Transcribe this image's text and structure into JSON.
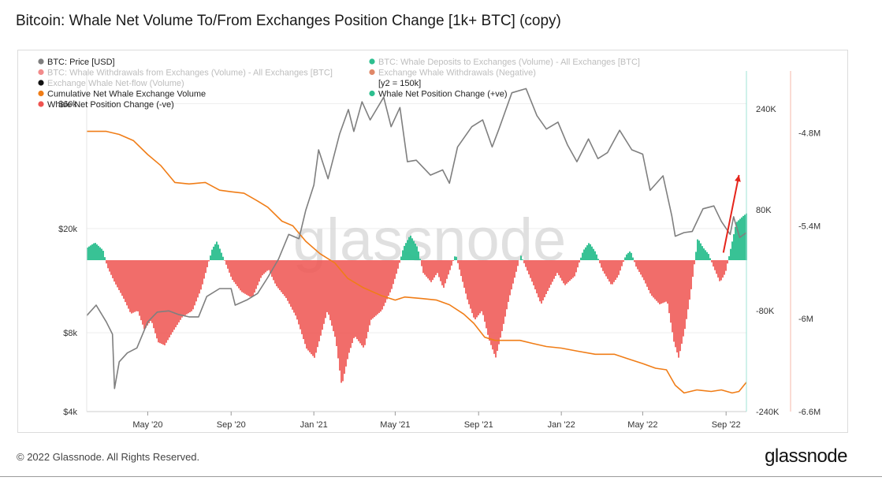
{
  "title": "Bitcoin: Whale Net Volume To/From Exchanges Position Change [1k+ BTC] (copy)",
  "watermark": "glassnode",
  "footer": {
    "copyright": "© 2022 Glassnode. All Rights Reserved.",
    "logo": "glassnode"
  },
  "colors": {
    "price": "#7f7f7f",
    "cumulative": "#f07d17",
    "positive": "#2dbf8f",
    "negative": "#ef5350",
    "annotation_arrow": "#e5241b"
  },
  "chart_data": {
    "type": "area",
    "x_ticks": [
      "May '20",
      "Sep '20",
      "Jan '21",
      "May '21",
      "Sep '21",
      "Jan '22",
      "May '22",
      "Sep '22"
    ],
    "x_range": [
      "2020-02",
      "2022-10"
    ],
    "y_left": {
      "label": "BTC: Price [USD]",
      "scale": "log",
      "range": [
        4000,
        80000
      ],
      "ticks": [
        "$4k",
        "$8k",
        "$20k",
        "$60k"
      ],
      "tick_values": [
        4000,
        8000,
        20000,
        60000
      ]
    },
    "y_right1": {
      "label": "Whale Net Position Change",
      "range": [
        -240000,
        300000
      ],
      "ticks": [
        "240K",
        "80K",
        "-80K",
        "-240K"
      ],
      "tick_values": [
        240000,
        80000,
        -80000,
        -240000
      ]
    },
    "y_right2": {
      "label": "Cumulative Net Whale Exchange Volume",
      "range": [
        -6600000,
        -4400000
      ],
      "ticks": [
        "-4.8M",
        "-5.4M",
        "-6M",
        "-6.6M"
      ],
      "tick_values": [
        -4800000,
        -5400000,
        -6000000,
        -6600000
      ]
    },
    "legend": [
      {
        "label": "BTC: Price [USD]",
        "color": "#7f7f7f",
        "active": true
      },
      {
        "label": "BTC: Whale Deposits to Exchanges (Volume) - All Exchanges [BTC]",
        "color": "#2dbf8f",
        "active": false
      },
      {
        "label": "BTC: Whale Withdrawals from Exchanges (Volume) - All Exchanges [BTC]",
        "color": "#f28b8b",
        "active": false
      },
      {
        "label": "Exchange Whale Withdrawals (Negative)",
        "color": "#e08868",
        "active": false
      },
      {
        "label": "Exchange Whale Net-flow (Volume)",
        "color": "#111111",
        "active": false
      },
      {
        "label": "[y2 = 150k]",
        "color": "",
        "active": true
      },
      {
        "label": "Cumulative Net Whale Exchange Volume",
        "color": "#f07d17",
        "active": true
      },
      {
        "label": "Whale Net Position Change (+ve)",
        "color": "#2dbf8f",
        "active": true
      },
      {
        "label": "Whale Net Position Change (-ve)",
        "color": "#ef5350",
        "active": true
      }
    ],
    "series": [
      {
        "name": "BTC: Price [USD]",
        "axis": "left",
        "points": [
          [
            "2020-02-01",
            9300
          ],
          [
            "2020-02-15",
            10200
          ],
          [
            "2020-03-01",
            8800
          ],
          [
            "2020-03-10",
            7900
          ],
          [
            "2020-03-13",
            4900
          ],
          [
            "2020-03-20",
            6200
          ],
          [
            "2020-04-01",
            6700
          ],
          [
            "2020-04-15",
            7000
          ],
          [
            "2020-05-01",
            8800
          ],
          [
            "2020-05-15",
            9600
          ],
          [
            "2020-06-01",
            9700
          ],
          [
            "2020-06-15",
            9400
          ],
          [
            "2020-07-01",
            9200
          ],
          [
            "2020-07-15",
            9200
          ],
          [
            "2020-07-27",
            11000
          ],
          [
            "2020-08-15",
            11800
          ],
          [
            "2020-09-01",
            11800
          ],
          [
            "2020-09-07",
            10200
          ],
          [
            "2020-09-25",
            10700
          ],
          [
            "2020-10-10",
            11300
          ],
          [
            "2020-10-25",
            13000
          ],
          [
            "2020-11-10",
            15300
          ],
          [
            "2020-11-25",
            19000
          ],
          [
            "2020-12-10",
            18300
          ],
          [
            "2020-12-20",
            23500
          ],
          [
            "2021-01-01",
            29300
          ],
          [
            "2021-01-08",
            40000
          ],
          [
            "2021-01-22",
            31000
          ],
          [
            "2021-02-08",
            46000
          ],
          [
            "2021-02-21",
            57000
          ],
          [
            "2021-03-01",
            47000
          ],
          [
            "2021-03-13",
            61000
          ],
          [
            "2021-03-25",
            52000
          ],
          [
            "2021-04-14",
            63500
          ],
          [
            "2021-04-25",
            49000
          ],
          [
            "2021-05-08",
            58000
          ],
          [
            "2021-05-19",
            36000
          ],
          [
            "2021-06-01",
            36500
          ],
          [
            "2021-06-22",
            32000
          ],
          [
            "2021-07-10",
            33500
          ],
          [
            "2021-07-20",
            29800
          ],
          [
            "2021-08-01",
            41000
          ],
          [
            "2021-08-22",
            49000
          ],
          [
            "2021-09-07",
            52000
          ],
          [
            "2021-09-21",
            41000
          ],
          [
            "2021-10-01",
            48000
          ],
          [
            "2021-10-20",
            66000
          ],
          [
            "2021-11-10",
            68500
          ],
          [
            "2021-11-26",
            54000
          ],
          [
            "2021-12-10",
            48000
          ],
          [
            "2021-12-27",
            51000
          ],
          [
            "2022-01-10",
            41800
          ],
          [
            "2022-01-24",
            36000
          ],
          [
            "2022-02-10",
            44000
          ],
          [
            "2022-02-24",
            37000
          ],
          [
            "2022-03-10",
            39000
          ],
          [
            "2022-03-28",
            47500
          ],
          [
            "2022-04-15",
            40000
          ],
          [
            "2022-05-01",
            38500
          ],
          [
            "2022-05-12",
            28000
          ],
          [
            "2022-05-31",
            31800
          ],
          [
            "2022-06-13",
            22300
          ],
          [
            "2022-06-18",
            18700
          ],
          [
            "2022-07-01",
            19300
          ],
          [
            "2022-07-13",
            19500
          ],
          [
            "2022-07-29",
            23800
          ],
          [
            "2022-08-14",
            24400
          ],
          [
            "2022-08-25",
            21300
          ],
          [
            "2022-09-07",
            19000
          ],
          [
            "2022-09-12",
            22200
          ],
          [
            "2022-09-21",
            18500
          ],
          [
            "2022-10-01",
            19300
          ]
        ]
      },
      {
        "name": "Cumulative Net Whale Exchange Volume",
        "axis": "right2",
        "points": [
          [
            "2020-02-01",
            -4790000
          ],
          [
            "2020-03-01",
            -4790000
          ],
          [
            "2020-03-20",
            -4810000
          ],
          [
            "2020-04-10",
            -4850000
          ],
          [
            "2020-05-01",
            -4940000
          ],
          [
            "2020-05-20",
            -5010000
          ],
          [
            "2020-06-10",
            -5120000
          ],
          [
            "2020-07-01",
            -5130000
          ],
          [
            "2020-07-25",
            -5120000
          ],
          [
            "2020-08-15",
            -5170000
          ],
          [
            "2020-09-01",
            -5180000
          ],
          [
            "2020-09-20",
            -5190000
          ],
          [
            "2020-10-10",
            -5240000
          ],
          [
            "2020-10-25",
            -5280000
          ],
          [
            "2020-11-15",
            -5370000
          ],
          [
            "2020-12-01",
            -5400000
          ],
          [
            "2020-12-20",
            -5500000
          ],
          [
            "2021-01-10",
            -5580000
          ],
          [
            "2021-02-01",
            -5640000
          ],
          [
            "2021-02-20",
            -5740000
          ],
          [
            "2021-03-15",
            -5800000
          ],
          [
            "2021-04-10",
            -5850000
          ],
          [
            "2021-05-01",
            -5880000
          ],
          [
            "2021-05-15",
            -5860000
          ],
          [
            "2021-06-10",
            -5870000
          ],
          [
            "2021-07-01",
            -5880000
          ],
          [
            "2021-07-20",
            -5910000
          ],
          [
            "2021-08-10",
            -5970000
          ],
          [
            "2021-08-25",
            -6030000
          ],
          [
            "2021-09-10",
            -6120000
          ],
          [
            "2021-09-25",
            -6140000
          ],
          [
            "2021-10-10",
            -6140000
          ],
          [
            "2021-11-01",
            -6140000
          ],
          [
            "2021-11-20",
            -6160000
          ],
          [
            "2021-12-10",
            -6180000
          ],
          [
            "2022-01-01",
            -6190000
          ],
          [
            "2022-01-25",
            -6210000
          ],
          [
            "2022-02-20",
            -6230000
          ],
          [
            "2022-03-20",
            -6230000
          ],
          [
            "2022-04-10",
            -6260000
          ],
          [
            "2022-05-01",
            -6290000
          ],
          [
            "2022-05-20",
            -6320000
          ],
          [
            "2022-06-05",
            -6330000
          ],
          [
            "2022-06-18",
            -6430000
          ],
          [
            "2022-07-01",
            -6480000
          ],
          [
            "2022-07-20",
            -6460000
          ],
          [
            "2022-08-10",
            -6470000
          ],
          [
            "2022-08-25",
            -6460000
          ],
          [
            "2022-09-10",
            -6480000
          ],
          [
            "2022-09-20",
            -6470000
          ],
          [
            "2022-10-01",
            -6410000
          ]
        ]
      },
      {
        "name": "Whale Net Position Change",
        "axis": "right1",
        "points": [
          [
            "2020-02-01",
            20000
          ],
          [
            "2020-02-12",
            28000
          ],
          [
            "2020-02-24",
            16000
          ],
          [
            "2020-03-01",
            -10000
          ],
          [
            "2020-03-12",
            -35000
          ],
          [
            "2020-03-25",
            -60000
          ],
          [
            "2020-04-05",
            -85000
          ],
          [
            "2020-04-15",
            -80000
          ],
          [
            "2020-04-25",
            -110000
          ],
          [
            "2020-05-05",
            -95000
          ],
          [
            "2020-05-15",
            -130000
          ],
          [
            "2020-05-25",
            -135000
          ],
          [
            "2020-06-05",
            -115000
          ],
          [
            "2020-06-20",
            -90000
          ],
          [
            "2020-07-05",
            -80000
          ],
          [
            "2020-07-18",
            -45000
          ],
          [
            "2020-07-27",
            -10000
          ],
          [
            "2020-08-03",
            18000
          ],
          [
            "2020-08-10",
            30000
          ],
          [
            "2020-08-18",
            8000
          ],
          [
            "2020-09-01",
            -30000
          ],
          [
            "2020-09-15",
            -50000
          ],
          [
            "2020-10-01",
            -60000
          ],
          [
            "2020-10-15",
            -25000
          ],
          [
            "2020-10-25",
            -15000
          ],
          [
            "2020-11-05",
            -40000
          ],
          [
            "2020-11-20",
            -60000
          ],
          [
            "2020-12-05",
            -90000
          ],
          [
            "2020-12-20",
            -140000
          ],
          [
            "2021-01-01",
            -155000
          ],
          [
            "2021-01-10",
            -120000
          ],
          [
            "2021-01-20",
            -80000
          ],
          [
            "2021-02-01",
            -125000
          ],
          [
            "2021-02-10",
            -200000
          ],
          [
            "2021-02-20",
            -150000
          ],
          [
            "2021-03-01",
            -120000
          ],
          [
            "2021-03-15",
            -140000
          ],
          [
            "2021-03-25",
            -95000
          ],
          [
            "2021-04-10",
            -80000
          ],
          [
            "2021-04-25",
            -45000
          ],
          [
            "2021-05-05",
            -10000
          ],
          [
            "2021-05-12",
            20000
          ],
          [
            "2021-05-22",
            40000
          ],
          [
            "2021-06-02",
            20000
          ],
          [
            "2021-06-10",
            -20000
          ],
          [
            "2021-06-22",
            -35000
          ],
          [
            "2021-07-01",
            -20000
          ],
          [
            "2021-07-10",
            -45000
          ],
          [
            "2021-07-20",
            -15000
          ],
          [
            "2021-07-28",
            10000
          ],
          [
            "2021-08-05",
            -25000
          ],
          [
            "2021-08-15",
            -65000
          ],
          [
            "2021-08-25",
            -95000
          ],
          [
            "2021-09-05",
            -80000
          ],
          [
            "2021-09-15",
            -125000
          ],
          [
            "2021-09-25",
            -155000
          ],
          [
            "2021-10-05",
            -110000
          ],
          [
            "2021-10-15",
            -60000
          ],
          [
            "2021-10-25",
            -20000
          ],
          [
            "2021-11-01",
            8000
          ],
          [
            "2021-11-10",
            -15000
          ],
          [
            "2021-11-20",
            -40000
          ],
          [
            "2021-12-01",
            -70000
          ],
          [
            "2021-12-15",
            -40000
          ],
          [
            "2021-12-25",
            -20000
          ],
          [
            "2022-01-05",
            -40000
          ],
          [
            "2022-01-20",
            -25000
          ],
          [
            "2022-02-01",
            15000
          ],
          [
            "2022-02-10",
            28000
          ],
          [
            "2022-02-20",
            12000
          ],
          [
            "2022-03-01",
            -15000
          ],
          [
            "2022-03-15",
            -40000
          ],
          [
            "2022-03-25",
            -25000
          ],
          [
            "2022-04-05",
            8000
          ],
          [
            "2022-04-12",
            15000
          ],
          [
            "2022-04-20",
            -10000
          ],
          [
            "2022-05-01",
            -30000
          ],
          [
            "2022-05-12",
            -55000
          ],
          [
            "2022-05-25",
            -70000
          ],
          [
            "2022-06-05",
            -65000
          ],
          [
            "2022-06-15",
            -130000
          ],
          [
            "2022-06-22",
            -155000
          ],
          [
            "2022-07-01",
            -110000
          ],
          [
            "2022-07-10",
            -50000
          ],
          [
            "2022-07-20",
            35000
          ],
          [
            "2022-07-28",
            20000
          ],
          [
            "2022-08-05",
            10000
          ],
          [
            "2022-08-12",
            -10000
          ],
          [
            "2022-08-22",
            -35000
          ],
          [
            "2022-08-30",
            -20000
          ],
          [
            "2022-09-05",
            10000
          ],
          [
            "2022-09-15",
            60000
          ],
          [
            "2022-09-25",
            70000
          ],
          [
            "2022-10-01",
            75000
          ]
        ]
      }
    ],
    "annotation": {
      "type": "arrow",
      "from": [
        "2022-08-28",
        12000
      ],
      "to": [
        "2022-09-20",
        135000
      ]
    }
  }
}
